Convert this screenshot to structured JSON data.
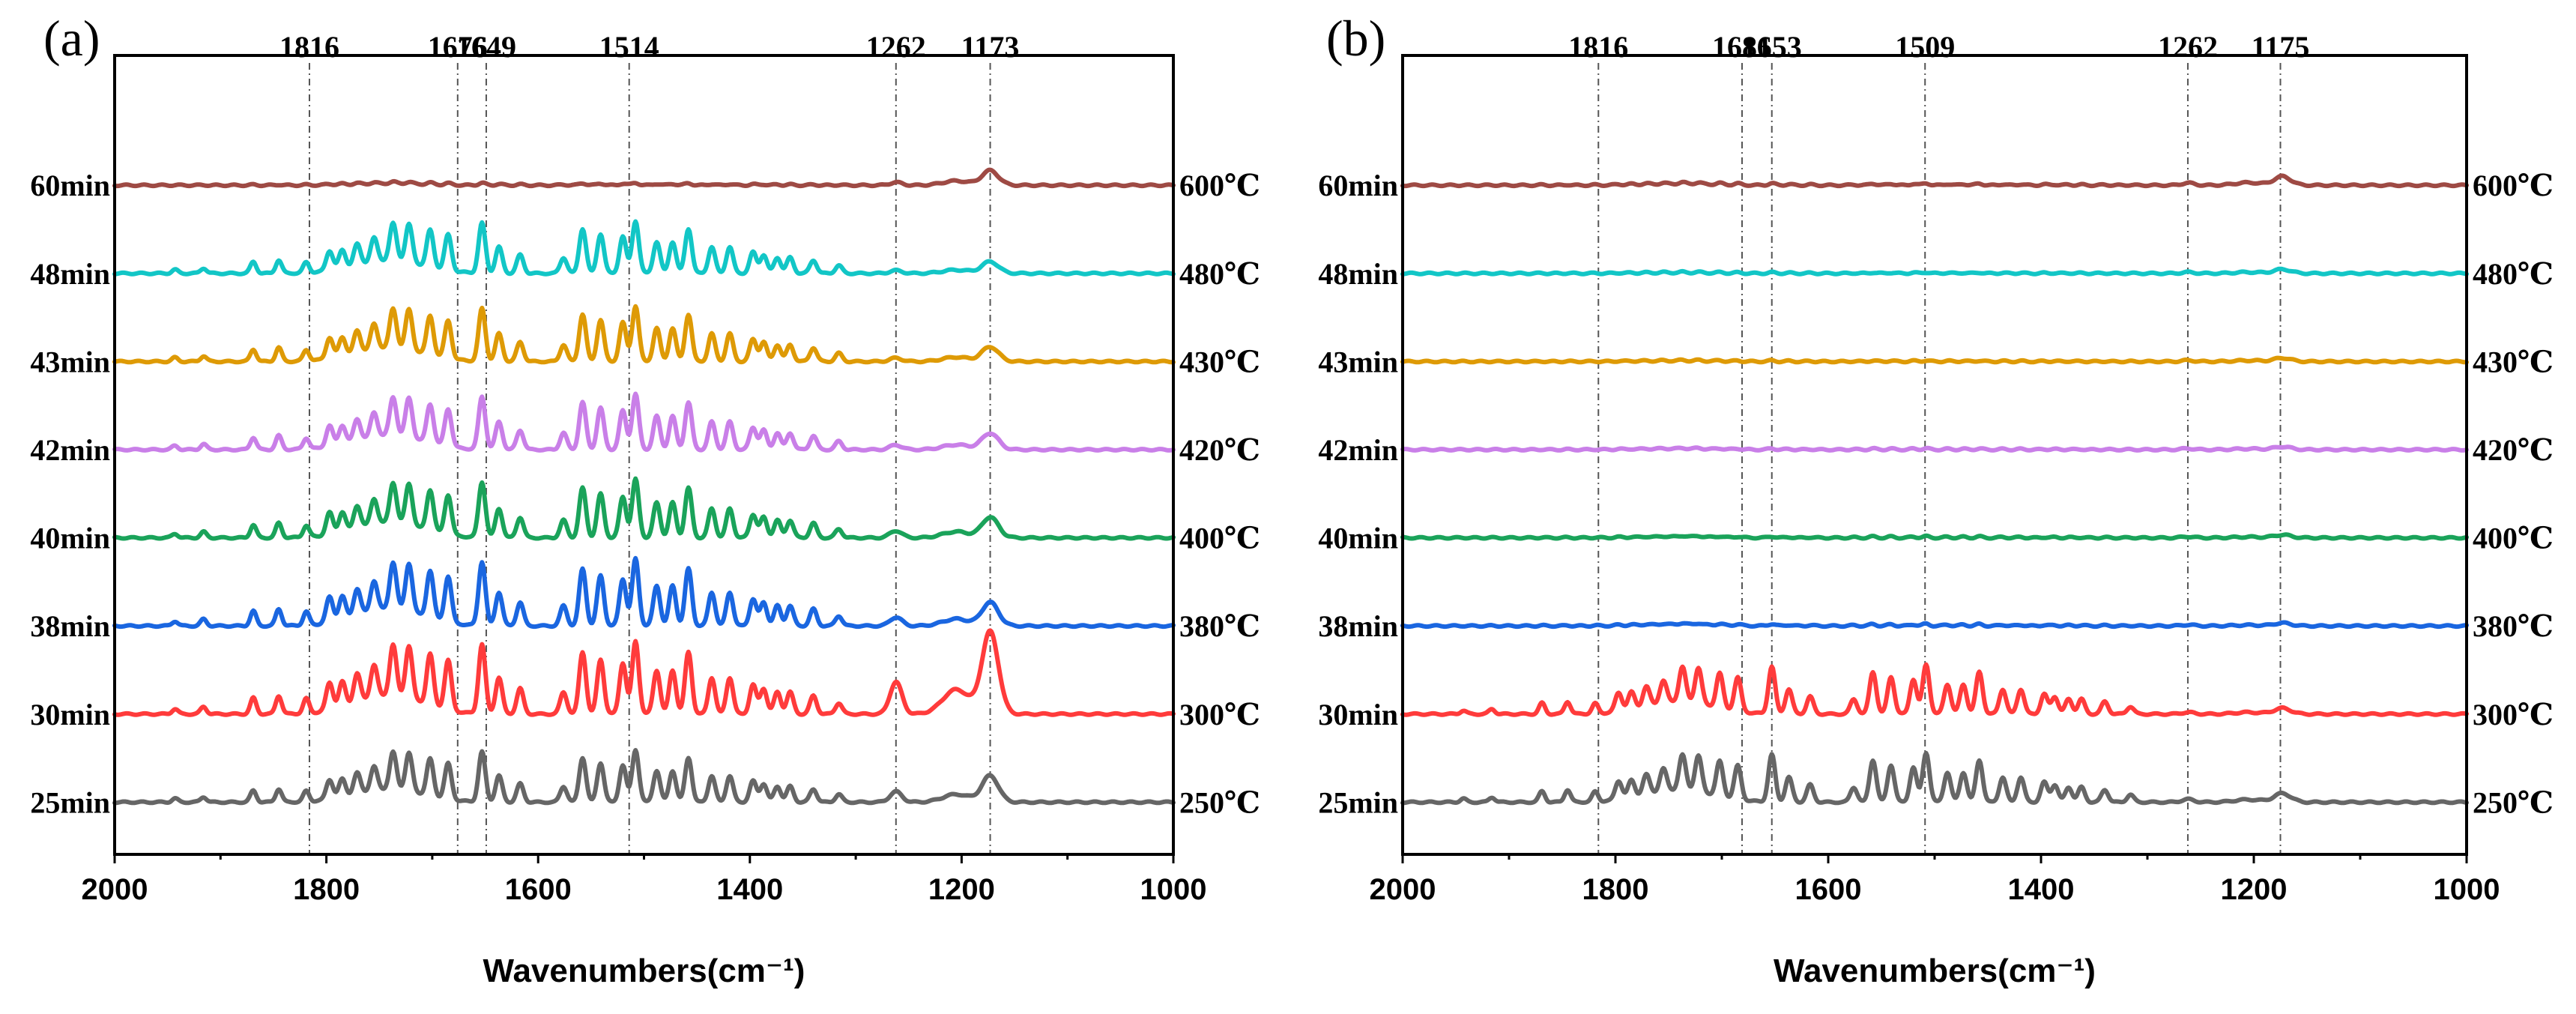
{
  "chart_data": [
    {
      "panel_label": "(a)",
      "type": "line",
      "xlabel": "Wavenumbers(cm⁻¹)",
      "x_range": [
        2000,
        1000
      ],
      "x_ticks": [
        2000,
        1800,
        1600,
        1400,
        1200,
        1000
      ],
      "x_tick_labels": [
        "2000",
        "1800",
        "1600",
        "1400",
        "1200",
        "1000"
      ],
      "peak_markers": [
        {
          "wavenumber": 1816,
          "label": "1816"
        },
        {
          "wavenumber": 1676,
          "label": "1676"
        },
        {
          "wavenumber": 1649,
          "label": "1649"
        },
        {
          "wavenumber": 1514,
          "label": "1514"
        },
        {
          "wavenumber": 1262,
          "label": "1262"
        },
        {
          "wavenumber": 1173,
          "label": "1173"
        }
      ],
      "series": [
        {
          "time": "25min",
          "temperature": "250℃",
          "color": "#666666",
          "stack_level": 0.4,
          "relative_intensity": 0.9,
          "bands": "full",
          "peak_1262": 0.18,
          "peak_1173": 0.45
        },
        {
          "time": "30min",
          "temperature": "300℃",
          "color": "#ff3b3b",
          "stack_level": 1.8,
          "relative_intensity": 1.25,
          "bands": "full",
          "peak_1262": 0.55,
          "peak_1173": 1.4
        },
        {
          "time": "38min",
          "temperature": "380℃",
          "color": "#1a66e0",
          "stack_level": 3.2,
          "relative_intensity": 1.15,
          "bands": "full",
          "peak_1262": 0.15,
          "peak_1173": 0.4
        },
        {
          "time": "40min",
          "temperature": "400℃",
          "color": "#1aa35a",
          "stack_level": 4.6,
          "relative_intensity": 1.0,
          "bands": "full",
          "peak_1262": 0.12,
          "peak_1173": 0.35
        },
        {
          "time": "42min",
          "temperature": "420℃",
          "color": "#c97fe8",
          "stack_level": 6.0,
          "relative_intensity": 0.95,
          "bands": "full",
          "peak_1262": 0.08,
          "peak_1173": 0.28
        },
        {
          "time": "43min",
          "temperature": "430℃",
          "color": "#de9a05",
          "stack_level": 7.4,
          "relative_intensity": 0.95,
          "bands": "full",
          "peak_1262": 0.06,
          "peak_1173": 0.25
        },
        {
          "time": "48min",
          "temperature": "480℃",
          "color": "#12c6c6",
          "stack_level": 8.8,
          "relative_intensity": 0.9,
          "bands": "full",
          "peak_1262": 0.05,
          "peak_1173": 0.2
        },
        {
          "time": "60min",
          "temperature": "600℃",
          "color": "#9e4a44",
          "stack_level": 10.2,
          "relative_intensity": 0.12,
          "bands": "weak",
          "peak_1262": 0.05,
          "peak_1173": 0.25
        }
      ]
    },
    {
      "panel_label": "(b)",
      "type": "line",
      "xlabel": "Wavenumbers(cm⁻¹)",
      "x_range": [
        2000,
        1000
      ],
      "x_ticks": [
        2000,
        1800,
        1600,
        1400,
        1200,
        1000
      ],
      "x_tick_labels": [
        "2000",
        "1800",
        "1600",
        "1400",
        "1200",
        "1000"
      ],
      "peak_markers": [
        {
          "wavenumber": 1816,
          "label": "1816"
        },
        {
          "wavenumber": 1681,
          "label": "1681"
        },
        {
          "wavenumber": 1653,
          "label": "1653"
        },
        {
          "wavenumber": 1509,
          "label": "1509"
        },
        {
          "wavenumber": 1262,
          "label": "1262"
        },
        {
          "wavenumber": 1175,
          "label": "1175"
        }
      ],
      "series": [
        {
          "time": "25min",
          "temperature": "250℃",
          "color": "#666666",
          "stack_level": 0.4,
          "relative_intensity": 0.85,
          "bands": "full",
          "peak_1262": 0.05,
          "peak_1173": 0.15
        },
        {
          "time": "30min",
          "temperature": "300℃",
          "color": "#ff3b3b",
          "stack_level": 1.8,
          "relative_intensity": 0.85,
          "bands": "full",
          "peak_1262": 0.03,
          "peak_1173": 0.1
        },
        {
          "time": "38min",
          "temperature": "380℃",
          "color": "#1a66e0",
          "stack_level": 3.2,
          "relative_intensity": 0.1,
          "bands": "weak",
          "peak_1262": 0.02,
          "peak_1173": 0.05
        },
        {
          "time": "40min",
          "temperature": "400℃",
          "color": "#1aa35a",
          "stack_level": 4.6,
          "relative_intensity": 0.07,
          "bands": "weak",
          "peak_1262": 0.02,
          "peak_1173": 0.05
        },
        {
          "time": "42min",
          "temperature": "420℃",
          "color": "#c97fe8",
          "stack_level": 6.0,
          "relative_intensity": 0.06,
          "bands": "weak",
          "peak_1262": 0.02,
          "peak_1173": 0.05
        },
        {
          "time": "43min",
          "temperature": "430℃",
          "color": "#de9a05",
          "stack_level": 7.4,
          "relative_intensity": 0.05,
          "bands": "weak",
          "peak_1262": 0.02,
          "peak_1173": 0.06
        },
        {
          "time": "48min",
          "temperature": "480℃",
          "color": "#12c6c6",
          "stack_level": 8.8,
          "relative_intensity": 0.05,
          "bands": "weak",
          "peak_1262": 0.02,
          "peak_1173": 0.07
        },
        {
          "time": "60min",
          "temperature": "600℃",
          "color": "#9e4a44",
          "stack_level": 10.2,
          "relative_intensity": 0.1,
          "bands": "weak",
          "peak_1262": 0.04,
          "peak_1173": 0.15
        }
      ]
    }
  ]
}
